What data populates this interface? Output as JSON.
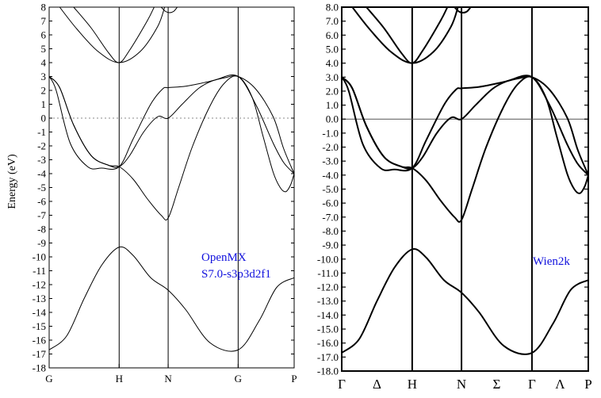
{
  "chart_data": [
    {
      "type": "line",
      "ylabel": "Energy (eV)",
      "ylim": [
        -18,
        8
      ],
      "yticks": [
        "8",
        "7",
        "6",
        "5",
        "4",
        "3",
        "2",
        "1",
        "0",
        "-1",
        "-2",
        "-3",
        "-4",
        "-5",
        "-6",
        "-7",
        "-8",
        "-9",
        "-10",
        "-11",
        "-12",
        "-13",
        "-14",
        "-15",
        "-16",
        "-17",
        "-18"
      ],
      "k_labels": [
        "G",
        "H",
        "N",
        "G",
        "P"
      ],
      "k_positions": [
        0,
        1,
        1.7,
        2.7,
        3.5
      ],
      "fermi_level": 0,
      "fermi_line": "dotted",
      "annotations": [
        "OpenMX",
        "S7.0-s3p3d2f1"
      ],
      "annotation_color": "#1010dd",
      "line_color": "#000000",
      "bands": [
        [
          [
            0,
            -16.7
          ],
          [
            0.25,
            -15.7
          ],
          [
            0.5,
            -13.0
          ],
          [
            0.75,
            -10.6
          ],
          [
            1.0,
            -9.3
          ],
          [
            1.2,
            -9.9
          ],
          [
            1.45,
            -11.5
          ],
          [
            1.7,
            -12.4
          ],
          [
            1.95,
            -13.8
          ],
          [
            2.3,
            -16.2
          ],
          [
            2.7,
            -16.7
          ],
          [
            3.0,
            -14.6
          ],
          [
            3.25,
            -12.2
          ],
          [
            3.5,
            -11.5
          ]
        ],
        [
          [
            0,
            3.0
          ],
          [
            0.15,
            2.2
          ],
          [
            0.35,
            -0.5
          ],
          [
            0.6,
            -2.7
          ],
          [
            0.85,
            -3.4
          ],
          [
            1.0,
            -3.5
          ],
          [
            1.2,
            -4.4
          ],
          [
            1.4,
            -5.8
          ],
          [
            1.6,
            -7.0
          ],
          [
            1.7,
            -7.2
          ],
          [
            1.85,
            -5.0
          ],
          [
            2.05,
            -2.0
          ],
          [
            2.3,
            0.9
          ],
          [
            2.5,
            2.5
          ],
          [
            2.7,
            3.0
          ],
          [
            2.9,
            1.5
          ],
          [
            3.05,
            -1.2
          ],
          [
            3.2,
            -3.9
          ],
          [
            3.3,
            -5.0
          ],
          [
            3.38,
            -5.3
          ],
          [
            3.45,
            -4.8
          ],
          [
            3.5,
            -4.0
          ]
        ],
        [
          [
            0,
            3.0
          ],
          [
            0.15,
            2.2
          ],
          [
            0.35,
            -0.5
          ],
          [
            0.6,
            -2.7
          ],
          [
            0.85,
            -3.4
          ],
          [
            1.0,
            -3.5
          ],
          [
            1.15,
            -2.7
          ],
          [
            1.35,
            -1.0
          ],
          [
            1.55,
            0.1
          ],
          [
            1.7,
            0.0
          ],
          [
            1.9,
            1.0
          ],
          [
            2.15,
            2.2
          ],
          [
            2.4,
            2.8
          ],
          [
            2.7,
            3.0
          ],
          [
            2.95,
            1.0
          ],
          [
            3.2,
            -1.8
          ],
          [
            3.35,
            -3.2
          ],
          [
            3.5,
            -4.0
          ]
        ],
        [
          [
            0,
            3.0
          ],
          [
            0.1,
            2.0
          ],
          [
            0.3,
            -1.8
          ],
          [
            0.55,
            -3.5
          ],
          [
            0.75,
            -3.6
          ],
          [
            1.0,
            -3.5
          ],
          [
            1.2,
            -1.5
          ],
          [
            1.45,
            1.0
          ],
          [
            1.62,
            2.1
          ],
          [
            1.7,
            2.2
          ],
          [
            1.95,
            2.3
          ],
          [
            2.25,
            2.6
          ],
          [
            2.5,
            2.9
          ],
          [
            2.7,
            3.0
          ],
          [
            2.95,
            2.1
          ],
          [
            3.2,
            0.1
          ],
          [
            3.35,
            -2.2
          ],
          [
            3.5,
            -4.0
          ]
        ],
        [
          [
            0.15,
            8.0
          ],
          [
            0.4,
            6.4
          ],
          [
            0.7,
            4.8
          ],
          [
            1.0,
            4.0
          ],
          [
            1.3,
            4.8
          ],
          [
            1.55,
            6.6
          ],
          [
            1.65,
            8.0
          ]
        ],
        [
          [
            0.35,
            8.0
          ],
          [
            0.6,
            6.5
          ],
          [
            0.85,
            4.7
          ],
          [
            1.0,
            4.0
          ],
          [
            1.15,
            4.9
          ],
          [
            1.4,
            7.0
          ],
          [
            1.5,
            8.0
          ]
        ],
        [
          [
            1.6,
            8.0
          ],
          [
            1.66,
            7.7
          ],
          [
            1.72,
            7.6
          ],
          [
            1.78,
            7.7
          ],
          [
            1.83,
            8.0
          ]
        ]
      ]
    },
    {
      "type": "line",
      "ylim": [
        -18,
        8
      ],
      "yticks": [
        "8.0",
        "7.0",
        "6.0",
        "5.0",
        "4.0",
        "3.0",
        "2.0",
        "1.0",
        "0.0",
        "-1.0",
        "-2.0",
        "-3.0",
        "-4.0",
        "-5.0",
        "-6.0",
        "-7.0",
        "-8.0",
        "-9.0",
        "-10.0",
        "-11.0",
        "-12.0",
        "-13.0",
        "-14.0",
        "-15.0",
        "-16.0",
        "-17.0",
        "-18.0"
      ],
      "k_labels": [
        "Γ",
        "Δ",
        "H",
        "N",
        "Σ",
        "Γ",
        "Λ",
        "P"
      ],
      "k_positions": [
        0,
        0.5,
        1,
        1.7,
        2.2,
        2.7,
        3.1,
        3.5
      ],
      "vertical_lines_at": [
        1,
        1.7,
        2.7
      ],
      "fermi_level": 0,
      "fermi_line": "solid",
      "annotations": [
        "Wien2k"
      ],
      "annotation_color": "#1010dd",
      "line_color": "#000000"
    }
  ]
}
